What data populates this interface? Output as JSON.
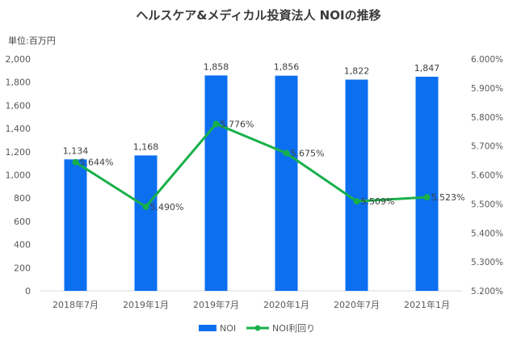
{
  "chart_data": {
    "type": "bar",
    "title": "ヘルスケア&メディカル投資法人 NOIの推移",
    "unit_label": "単位:百万円",
    "categories": [
      "2018年7月",
      "2019年1月",
      "2019年7月",
      "2020年1月",
      "2020年7月",
      "2021年1月"
    ],
    "series": [
      {
        "name": "NOI",
        "type": "bar",
        "axis": "left",
        "color": "#0b6ff0",
        "values": [
          1134,
          1168,
          1858,
          1856,
          1822,
          1847
        ],
        "labels": [
          "1,134",
          "1,168",
          "1,858",
          "1,856",
          "1,822",
          "1,847"
        ]
      },
      {
        "name": "NOI利回り",
        "type": "line",
        "axis": "right",
        "color": "#17b04a",
        "values": [
          5.644,
          5.49,
          5.776,
          5.675,
          5.509,
          5.523
        ],
        "labels": [
          "5.644%",
          "5.490%",
          "5.776%",
          "5.675%",
          "5.509%",
          "5.523%"
        ]
      }
    ],
    "y_left": {
      "min": 0,
      "max": 2000,
      "ticks": [
        "0",
        "200",
        "400",
        "600",
        "800",
        "1,000",
        "1,200",
        "1,400",
        "1,600",
        "1,800",
        "2,000"
      ]
    },
    "y_right": {
      "min": 5.2,
      "max": 6.0,
      "ticks": [
        "5.200%",
        "5.300%",
        "5.400%",
        "5.500%",
        "5.600%",
        "5.700%",
        "5.800%",
        "5.900%",
        "6.000%"
      ]
    },
    "grid": false,
    "legend": "bottom"
  }
}
